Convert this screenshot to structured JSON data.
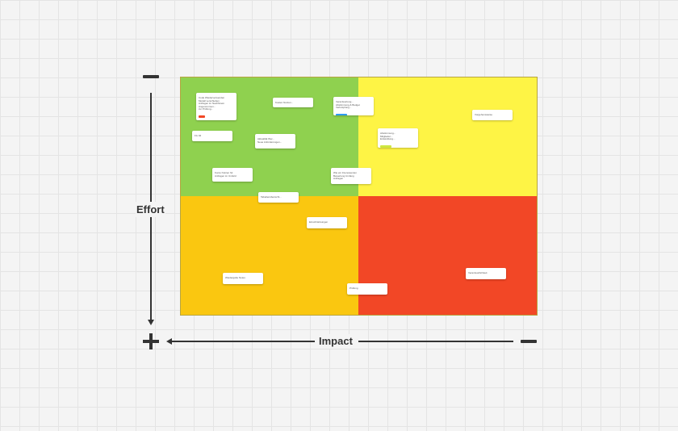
{
  "axes": {
    "effort_label": "Effort",
    "impact_label": "Impact"
  },
  "quadrant_colors": {
    "top_left": "#8fd14f",
    "top_right": "#fef445",
    "bottom_left": "#fac710",
    "bottom_right": "#f24726"
  },
  "cards": [
    {
      "text": "Code Wiederverwenden\nModell verschieben\nAnfragen im Nachhinein\nAngenommen...\nzur Prüfung...",
      "tag_color": "#f24726"
    },
    {
      "text": "Kosten Nutzen...",
      "tag_color": "#cee741"
    },
    {
      "text": "Verantwortung...\nAbstimmung & Budget\nVerknüpfung...",
      "tag_color": "#2d9bf0"
    },
    {
      "text": "Vorgehensweise",
      "tag_color": "#2d9bf0"
    },
    {
      "text": "Fix 04",
      "tag_color": "#f24726"
    },
    {
      "text": "Aktualität Wer...\nNeue Anforderungen...",
      "tag_color": "#2d9bf0"
    },
    {
      "text": "Abstimmung...\nMitglieder...\nEntwicklung...",
      "tag_color": "#cee741"
    },
    {
      "text": "Konto Nutzen für\nAnfragen im Umfeld",
      "tag_color": "#12cdd4"
    },
    {
      "text": "Wie ein Interessenten\nBewertung Umfang\nAnfragen",
      "tag_color": "#cee741"
    },
    {
      "text": "Tabellenübersicht...",
      "tag_color": "#808080"
    },
    {
      "text": "Einschränkungen",
      "tag_color": "#da0063"
    },
    {
      "text": "Wiedergabe Notes",
      "tag_color": "#da0063"
    },
    {
      "text": "Prüfung",
      "tag_color": "#808080"
    },
    {
      "text": "Verantwortlichkeit",
      "tag_color": "#cee741"
    }
  ]
}
